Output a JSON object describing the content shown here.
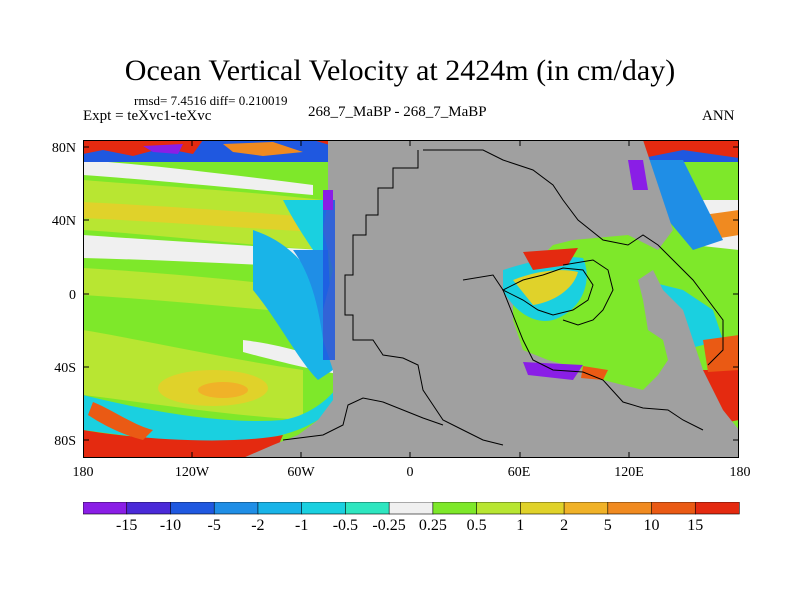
{
  "title": "Ocean Vertical Velocity at 2424m (in cm/day)",
  "stats": "rmsd= 7.4516 diff= 0.210019",
  "expt": "Expt = teXvc1-teXvc",
  "case": "268_7_MaBP - 268_7_MaBP",
  "season": "ANN",
  "lat_ticks": [
    "80N",
    "40N",
    "0",
    "40S",
    "80S"
  ],
  "lon_ticks": [
    "180",
    "120W",
    "60W",
    "0",
    "60E",
    "120E",
    "180"
  ],
  "colorbar": {
    "labels": [
      "-15",
      "-10",
      "-5",
      "-2",
      "-1",
      "-0.5",
      "-0.25",
      "0.25",
      "0.5",
      "1",
      "2",
      "5",
      "10",
      "15"
    ],
    "colors": [
      "#8a1ee6",
      "#4a2ad8",
      "#1f58e0",
      "#1f8ee6",
      "#19b4e8",
      "#1ad0e0",
      "#2ee6c0",
      "#f0f0f0",
      "#7ee82a",
      "#b8e632",
      "#e0d22a",
      "#f0b228",
      "#f08a20",
      "#ea5a14",
      "#e42a10"
    ]
  },
  "land_color": "#a0a0a0"
}
